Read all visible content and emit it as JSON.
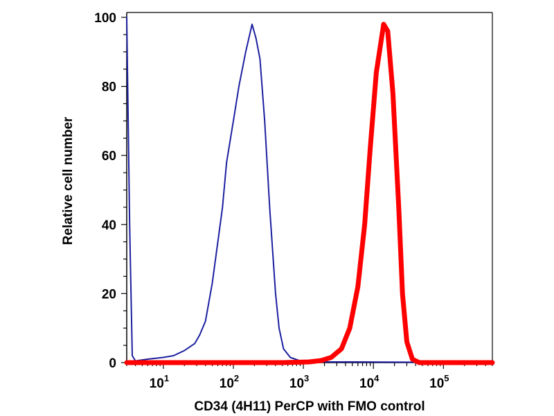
{
  "chart_data": {
    "type": "line",
    "title": "",
    "xlabel": "CD34 (4H11) PerCP with FMO control",
    "ylabel": "Relative cell number",
    "x_scale": "log",
    "xlim": [
      3,
      500000
    ],
    "ylim": [
      0,
      100
    ],
    "y_ticks": [
      "0",
      "20",
      "40",
      "60",
      "80",
      "100"
    ],
    "x_ticks": [
      {
        "base": "10",
        "exp": "1",
        "value": 10
      },
      {
        "base": "10",
        "exp": "2",
        "value": 100
      },
      {
        "base": "10",
        "exp": "3",
        "value": 1000
      },
      {
        "base": "10",
        "exp": "4",
        "value": 10000
      },
      {
        "base": "10",
        "exp": "5",
        "value": 100000
      }
    ],
    "grid": false,
    "legend": "none",
    "series": [
      {
        "color": "#1b1f9e",
        "points": [
          [
            3,
            100
          ],
          [
            3.3,
            40
          ],
          [
            3.6,
            2
          ],
          [
            4,
            0.5
          ],
          [
            6,
            1
          ],
          [
            10,
            1.5
          ],
          [
            14,
            2
          ],
          [
            20,
            3.5
          ],
          [
            28,
            5.5
          ],
          [
            33,
            8
          ],
          [
            40,
            12
          ],
          [
            50,
            23
          ],
          [
            60,
            35
          ],
          [
            70,
            45
          ],
          [
            80,
            58
          ],
          [
            100,
            70
          ],
          [
            120,
            80
          ],
          [
            150,
            90
          ],
          [
            185,
            98
          ],
          [
            210,
            94
          ],
          [
            240,
            88
          ],
          [
            280,
            70
          ],
          [
            330,
            45
          ],
          [
            400,
            20
          ],
          [
            450,
            10
          ],
          [
            520,
            4
          ],
          [
            650,
            1.5
          ],
          [
            900,
            0.5
          ],
          [
            1500,
            0.2
          ],
          [
            3000,
            0.2
          ],
          [
            5000,
            0.2
          ],
          [
            500000,
            0
          ]
        ]
      },
      {
        "color": "#ff0000",
        "points": [
          [
            3,
            0
          ],
          [
            500,
            0
          ],
          [
            1200,
            0.2
          ],
          [
            1800,
            0.6
          ],
          [
            2500,
            1.5
          ],
          [
            3500,
            4
          ],
          [
            4600,
            10
          ],
          [
            6000,
            22
          ],
          [
            7500,
            40
          ],
          [
            9000,
            62
          ],
          [
            11000,
            84
          ],
          [
            14000,
            98
          ],
          [
            16000,
            96
          ],
          [
            19000,
            78
          ],
          [
            23000,
            45
          ],
          [
            26000,
            20
          ],
          [
            30000,
            6
          ],
          [
            36000,
            1
          ],
          [
            45000,
            0
          ],
          [
            500000,
            0
          ]
        ]
      }
    ]
  }
}
